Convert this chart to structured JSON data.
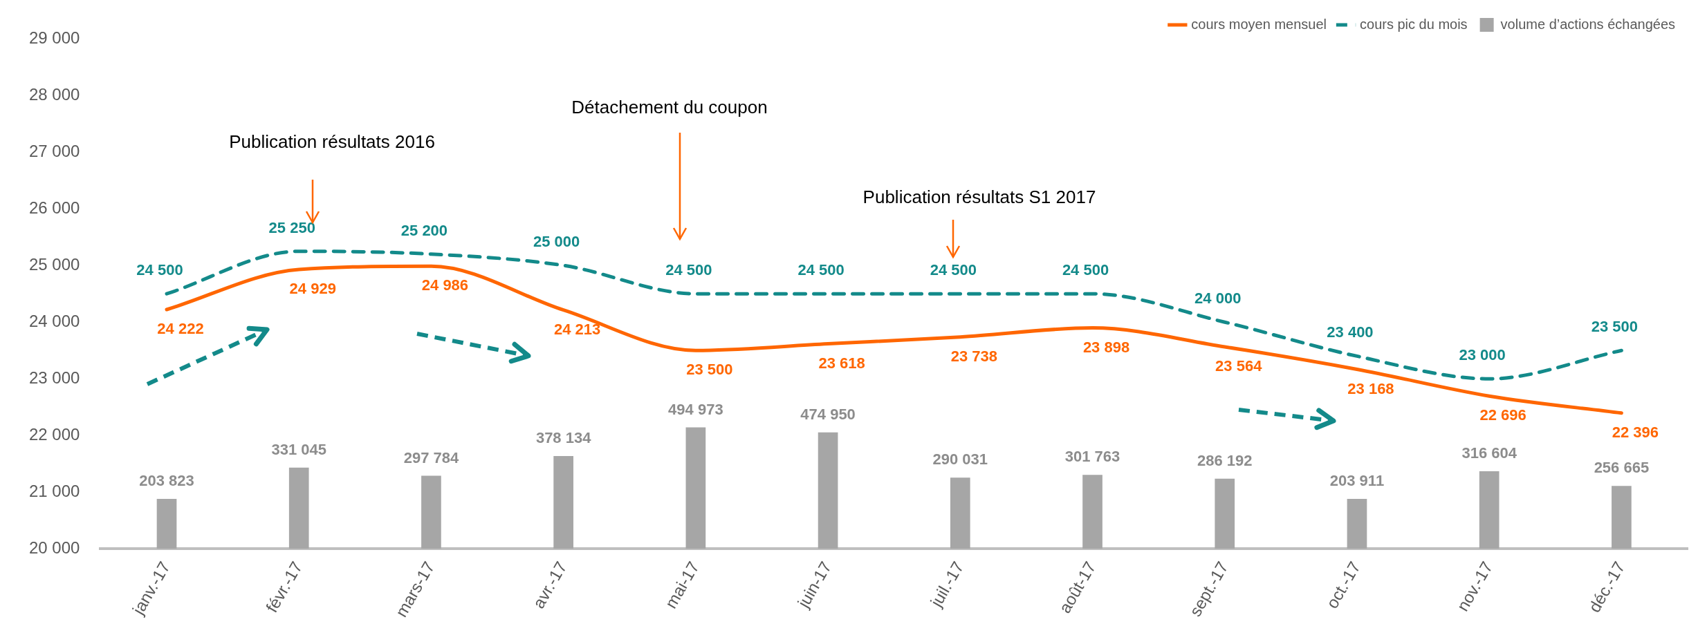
{
  "chart_data": {
    "type": "line",
    "categories": [
      "janv.-17",
      "févr.-17",
      "mars-17",
      "avr.-17",
      "mai-17",
      "juin-17",
      "juil.-17",
      "août-17",
      "sept.-17",
      "oct.-17",
      "nov.-17",
      "déc.-17"
    ],
    "series": [
      {
        "name": "cours moyen mensuel",
        "color": "#ff6600",
        "line_style": "solid",
        "values": [
          24222,
          24929,
          24986,
          24213,
          23500,
          23618,
          23738,
          23898,
          23564,
          23168,
          22696,
          22396
        ],
        "value_labels": [
          "24 222",
          "24 929",
          "24 986",
          "24 213",
          "23 500",
          "23 618",
          "23 738",
          "23 898",
          "23 564",
          "23 168",
          "22 696",
          "22 396"
        ]
      },
      {
        "name": "cours pic du mois",
        "color": "#138a8a",
        "line_style": "dashed",
        "values": [
          24500,
          25250,
          25200,
          25000,
          24500,
          24500,
          24500,
          24500,
          24000,
          23400,
          23000,
          23500
        ],
        "value_labels": [
          "24 500",
          "25 250",
          "25 200",
          "25 000",
          "24 500",
          "24 500",
          "24 500",
          "24 500",
          "24 000",
          "23 400",
          "23 000",
          "23 500"
        ]
      },
      {
        "name": "volume d’actions échangées",
        "type": "bar",
        "axis": "y2",
        "color": "#a6a6a6",
        "values": [
          203823,
          331045,
          297784,
          378134,
          494973,
          474950,
          290031,
          301763,
          286192,
          203911,
          316604,
          256665
        ],
        "value_labels": [
          "203 823",
          "331 045",
          "297 784",
          "378 134",
          "494 973",
          "474 950",
          "290 031",
          "301 763",
          "286 192",
          "203 911",
          "316 604",
          "256 665"
        ]
      }
    ],
    "ylim": [
      20000,
      29000
    ],
    "yticks": [
      {
        "value": 20000,
        "label": "20 000"
      },
      {
        "value": 21000,
        "label": "21 000"
      },
      {
        "value": 22000,
        "label": "22 000"
      },
      {
        "value": 23000,
        "label": "23 000"
      },
      {
        "value": 24000,
        "label": "24 000"
      },
      {
        "value": 25000,
        "label": "25 000"
      },
      {
        "value": 26000,
        "label": "26 000"
      },
      {
        "value": 27000,
        "label": "27 000"
      },
      {
        "value": 28000,
        "label": "28 000"
      },
      {
        "value": 29000,
        "label": "29 000"
      }
    ],
    "annotations": [
      "Publication résultats 2016",
      "Détachement du coupon",
      "Publication résultats S1 2017"
    ],
    "grid": false,
    "legend": "top right",
    "marker": "none"
  }
}
